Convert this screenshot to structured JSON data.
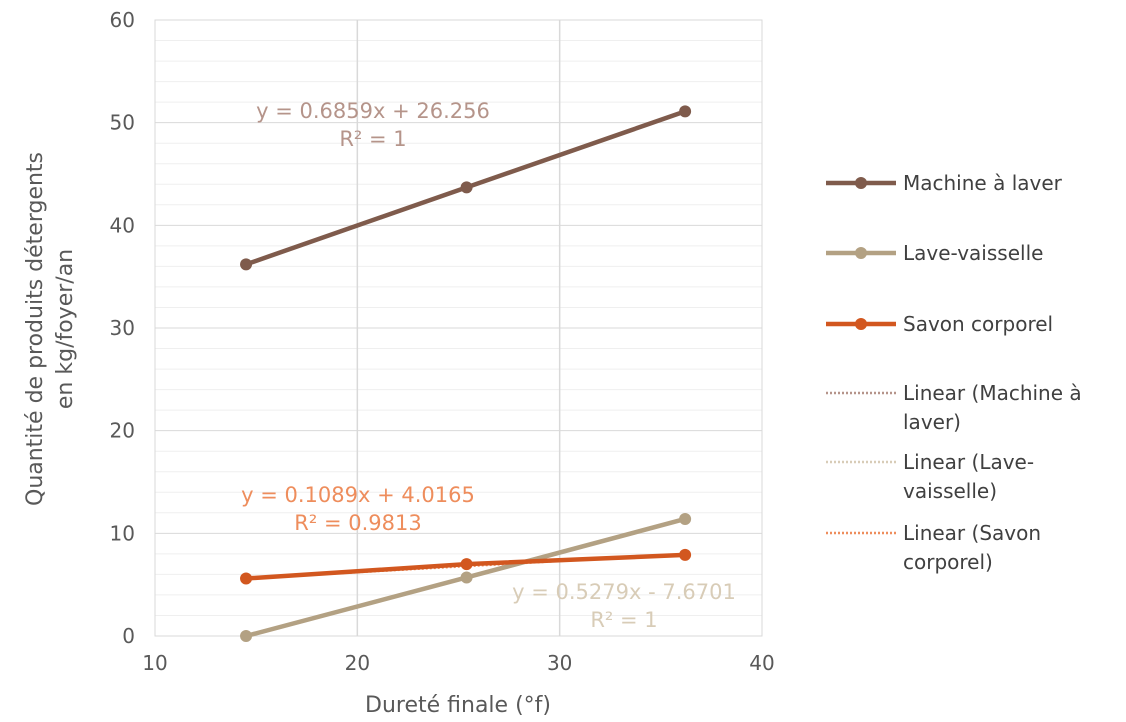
{
  "chart_data": {
    "type": "line",
    "xlabel": "Dureté finale (°f)",
    "ylabel_lines": [
      "Quantité de produits détergents",
      "en kg/foyer/an"
    ],
    "xlim": [
      10,
      40
    ],
    "ylim": [
      0,
      60
    ],
    "x_ticks": [
      "10",
      "20",
      "30",
      "40"
    ],
    "y_ticks": [
      "0",
      "10",
      "20",
      "30",
      "40",
      "50",
      "60"
    ],
    "major_grid_x": [
      20,
      30
    ],
    "minor_grid_y_step": 2,
    "legend_position": "right",
    "series": [
      {
        "name": "Machine à laver",
        "color": "#7f5b4c",
        "x": [
          14.5,
          25.4,
          36.2
        ],
        "y": [
          36.2,
          43.7,
          51.1
        ]
      },
      {
        "name": "Lave-vaisselle",
        "color": "#b3a183",
        "x": [
          14.5,
          25.4,
          36.2
        ],
        "y": [
          0.0,
          5.7,
          11.4
        ]
      },
      {
        "name": "Savon corporel",
        "color": "#d2571f",
        "x": [
          14.5,
          25.4,
          36.2
        ],
        "y": [
          5.6,
          7.0,
          7.9
        ]
      }
    ],
    "trendlines": [
      {
        "legend_lines": [
          "Linear (Machine à",
          "laver)"
        ],
        "color": "#b5948a",
        "slope": 0.6859,
        "intercept": 26.256,
        "x_range": [
          14.5,
          36.2
        ],
        "equation": "y = 0.6859x + 26.256",
        "r2": "R² = 1"
      },
      {
        "legend_lines": [
          "Linear (Lave-",
          "vaisselle)"
        ],
        "color": "#d8ccb7",
        "slope": 0.5279,
        "intercept": -7.6701,
        "x_range": [
          14.5,
          36.2
        ],
        "equation": "y = 0.5279x - 7.6701",
        "r2": "R² = 1"
      },
      {
        "legend_lines": [
          "Linear (Savon",
          "corporel)"
        ],
        "color": "#ee8d5c",
        "slope": 0.1089,
        "intercept": 4.0165,
        "x_range": [
          14.5,
          36.2
        ],
        "equation": "y = 0.1089x + 4.0165",
        "r2": "R² = 0.9813"
      }
    ]
  }
}
